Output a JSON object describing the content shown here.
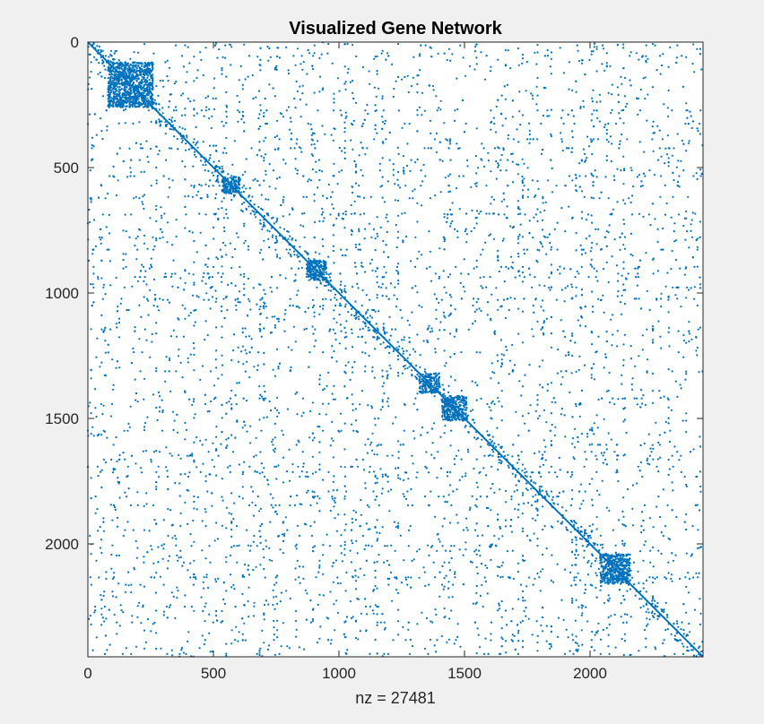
{
  "chart_data": {
    "type": "scatter",
    "subtype": "sparsity-pattern",
    "title": "Visualized Gene Network",
    "xlabel": "nz = 27481",
    "ylabel": "",
    "nz": 27481,
    "matrix_size": 2450,
    "xlim": [
      0,
      2450
    ],
    "ylim": [
      2450,
      0
    ],
    "y_axis_direction": "reversed",
    "x_ticks": [
      0,
      500,
      1000,
      1500,
      2000
    ],
    "y_ticks": [
      0,
      500,
      1000,
      1500,
      2000
    ],
    "x_tick_labels": [
      "0",
      "500",
      "1000",
      "1500",
      "2000"
    ],
    "y_tick_labels": [
      "0",
      "500",
      "1000",
      "1500",
      "2000"
    ],
    "diagonal": true,
    "dense_blocks": [
      {
        "center": [
          170,
          170
        ],
        "half_width": 90
      },
      {
        "center": [
          570,
          570
        ],
        "half_width": 35
      },
      {
        "center": [
          910,
          910
        ],
        "half_width": 40
      },
      {
        "center": [
          1360,
          1360
        ],
        "half_width": 40
      },
      {
        "center": [
          1460,
          1460
        ],
        "half_width": 50
      },
      {
        "center": [
          2100,
          2100
        ],
        "half_width": 60
      }
    ],
    "grid": false,
    "legend": "none",
    "marker_color": "#0072bd",
    "marker": "dot"
  },
  "colors": {
    "figure_background": "#f0f0f0",
    "axes_background": "#ffffff",
    "axis_color": "#262626",
    "marker": "#0072bd"
  }
}
